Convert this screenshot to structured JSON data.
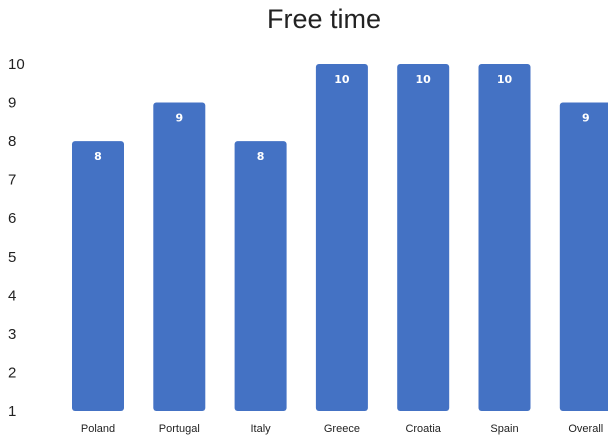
{
  "chart_data": {
    "type": "bar",
    "title": "Free time",
    "xlabel": "",
    "ylabel": "",
    "categories": [
      "Poland",
      "Portugal",
      "Italy",
      "Greece",
      "Croatia",
      "Spain",
      "Overall"
    ],
    "values": [
      8,
      9,
      8,
      10,
      10,
      10,
      9
    ],
    "data_labels": [
      "8",
      "9",
      "8",
      "10",
      "10",
      "10",
      "9"
    ],
    "y_ticks": [
      1,
      2,
      3,
      4,
      5,
      6,
      7,
      8,
      9,
      10
    ],
    "ylim": [
      1,
      10
    ],
    "grid": false,
    "legend": "none",
    "bar_color": "#4472C4"
  }
}
